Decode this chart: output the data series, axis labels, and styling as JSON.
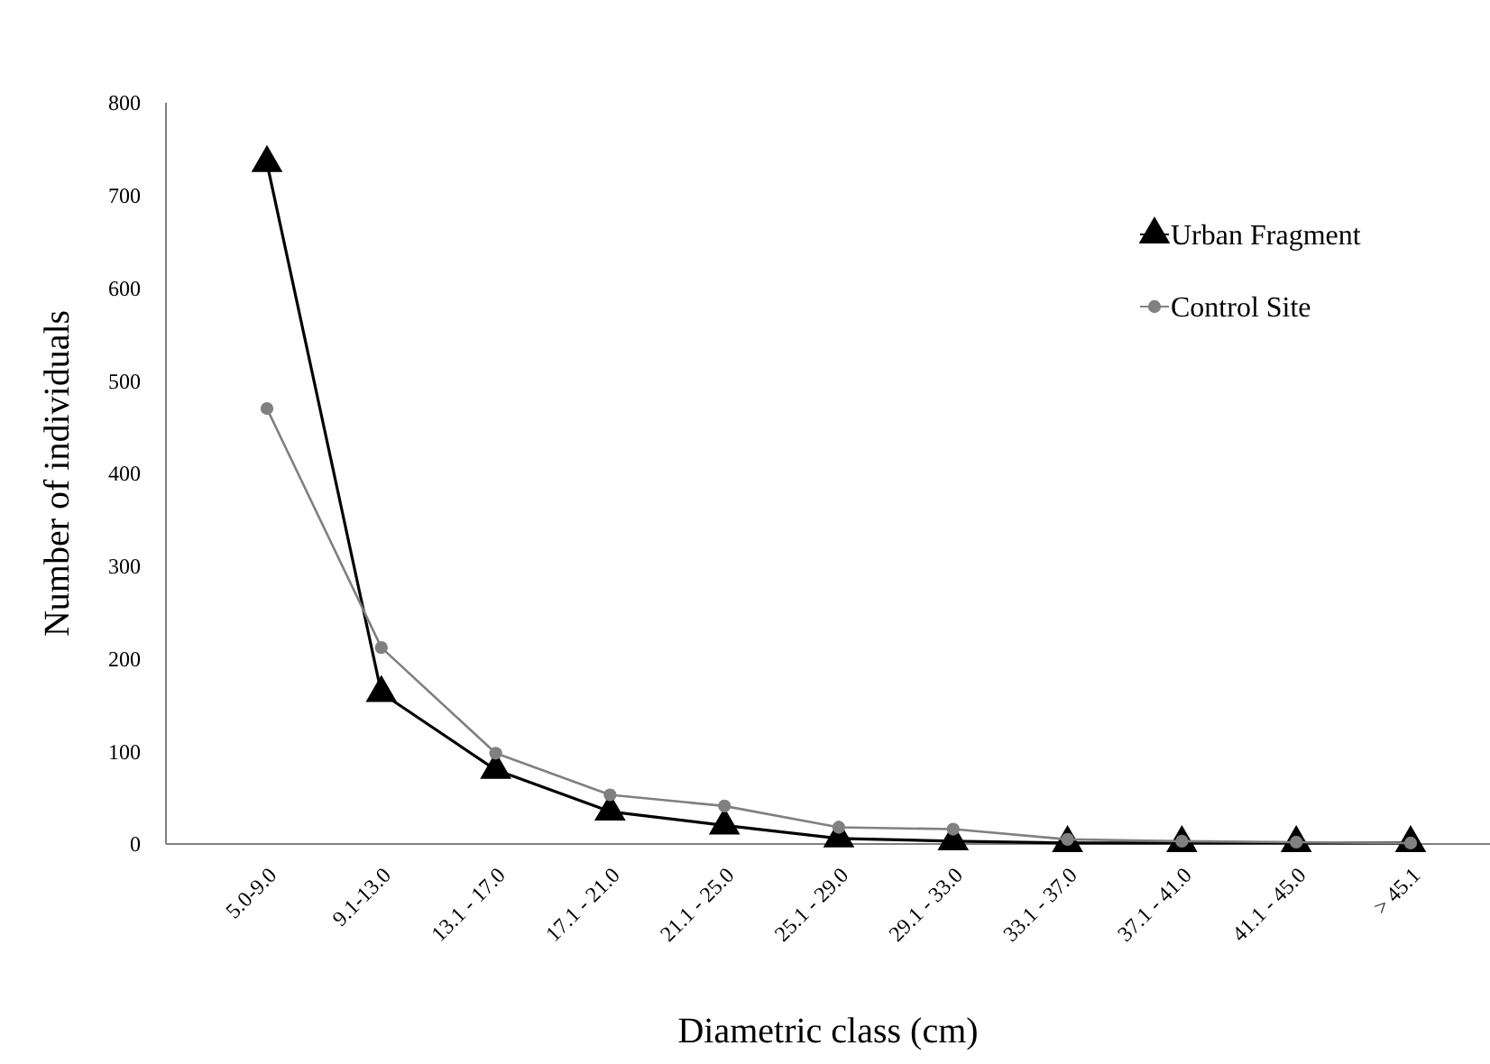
{
  "chart_data": {
    "type": "line",
    "xlabel": "Diametric class (cm)",
    "ylabel": "Number of individuals",
    "categories": [
      "5.0-9.0",
      "9.1-13.0",
      "13.1 - 17.0",
      "17.1 - 21.0",
      "21.1 - 25.0",
      "25.1 - 29.0",
      "29.1 - 33.0",
      "33.1 - 37.0",
      "37.1 - 41.0",
      "41.1 - 45.0",
      "> 45.1"
    ],
    "series": [
      {
        "name": "Urban Fragment",
        "color": "#000000",
        "marker": "triangle",
        "values": [
          735,
          163,
          80,
          35,
          20,
          6,
          3,
          1,
          1,
          1,
          1
        ]
      },
      {
        "name": "Control Site",
        "color": "#808080",
        "marker": "circle",
        "values": [
          470,
          212,
          98,
          53,
          41,
          18,
          16,
          5,
          3,
          2,
          1
        ]
      }
    ],
    "ylim": [
      0,
      800
    ],
    "yticks": [
      0,
      100,
      200,
      300,
      400,
      500,
      600,
      700,
      800
    ],
    "grid": false,
    "legend": "top right"
  }
}
